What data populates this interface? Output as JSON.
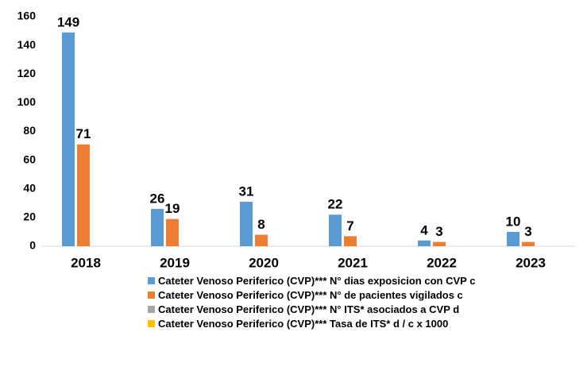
{
  "chart_data": {
    "type": "bar",
    "categories": [
      "2018",
      "2019",
      "2020",
      "2021",
      "2022",
      "2023"
    ],
    "series": [
      {
        "name": "Cateter Venoso Periferico (CVP)*** N° dias exposicion con CVP c",
        "color": "#5b9bd5",
        "values": [
          149,
          26,
          31,
          22,
          4,
          10
        ]
      },
      {
        "name": "Cateter Venoso Periferico (CVP)*** N° de pacientes vigilados c",
        "color": "#ed7d31",
        "values": [
          71,
          19,
          8,
          7,
          3,
          3
        ]
      },
      {
        "name": "Cateter Venoso Periferico (CVP)*** N° ITS* asociados a CVP d",
        "color": "#a5a5a5",
        "values": [
          null,
          null,
          null,
          null,
          null,
          null
        ]
      },
      {
        "name": "Cateter Venoso Periferico (CVP)*** Tasa de ITS*  d / c x 1000",
        "color": "#ffc000",
        "values": [
          null,
          null,
          null,
          null,
          null,
          null
        ]
      }
    ],
    "ylim": [
      0,
      160
    ],
    "yticks": [
      0,
      20,
      40,
      60,
      80,
      100,
      120,
      140,
      160
    ],
    "grid": false,
    "legend": "bottom"
  }
}
